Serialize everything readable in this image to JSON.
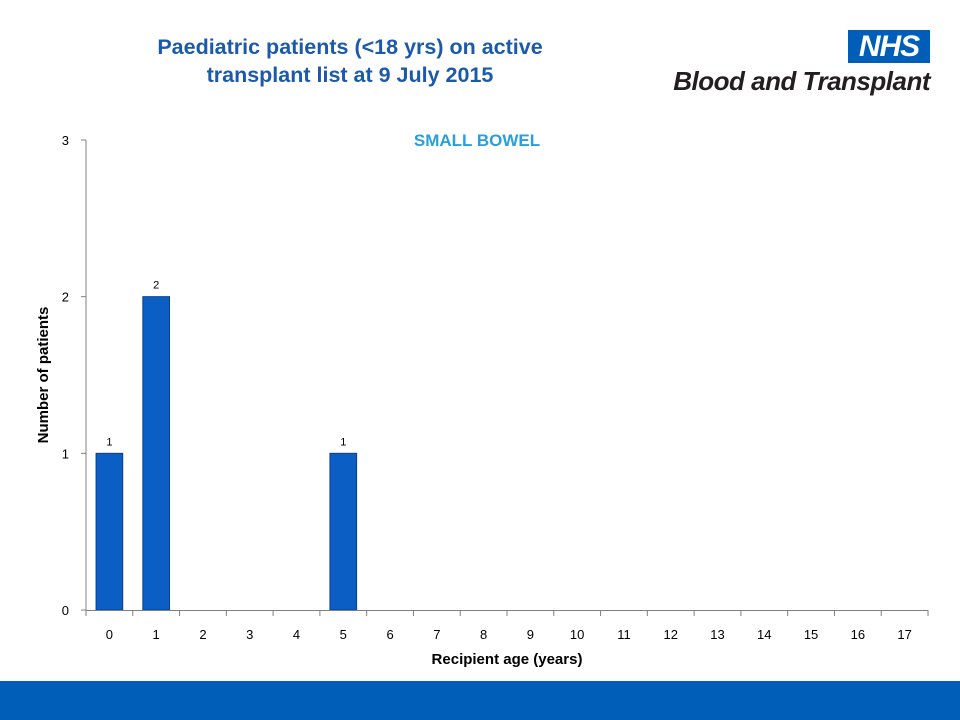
{
  "header": {
    "title_line1": "Paediatric patients (<18 yrs) on active",
    "title_line2": "transplant list at 9 July 2015"
  },
  "logo": {
    "nhs": "NHS",
    "org": "Blood and Transplant"
  },
  "colors": {
    "title": "#1b5aab",
    "subtitle": "#2a9fd8",
    "bar": "#0a5ec4",
    "footer": "#005eb8"
  },
  "chart_data": {
    "type": "bar",
    "subtitle": "SMALL BOWEL",
    "xlabel": "Recipient age (years)",
    "ylabel": "Number of patients",
    "categories": [
      "0",
      "1",
      "2",
      "3",
      "4",
      "5",
      "6",
      "7",
      "8",
      "9",
      "10",
      "11",
      "12",
      "13",
      "14",
      "15",
      "16",
      "17"
    ],
    "values": [
      1,
      2,
      0,
      0,
      0,
      1,
      0,
      0,
      0,
      0,
      0,
      0,
      0,
      0,
      0,
      0,
      0,
      0
    ],
    "data_labels": [
      "1",
      "2",
      "",
      "",
      "",
      "1",
      "",
      "",
      "",
      "",
      "",
      "",
      "",
      "",
      "",
      "",
      "",
      ""
    ],
    "ylim": [
      0,
      3
    ],
    "yticks": [
      "0",
      "1",
      "2",
      "3"
    ],
    "grid": false,
    "legend": "none"
  }
}
